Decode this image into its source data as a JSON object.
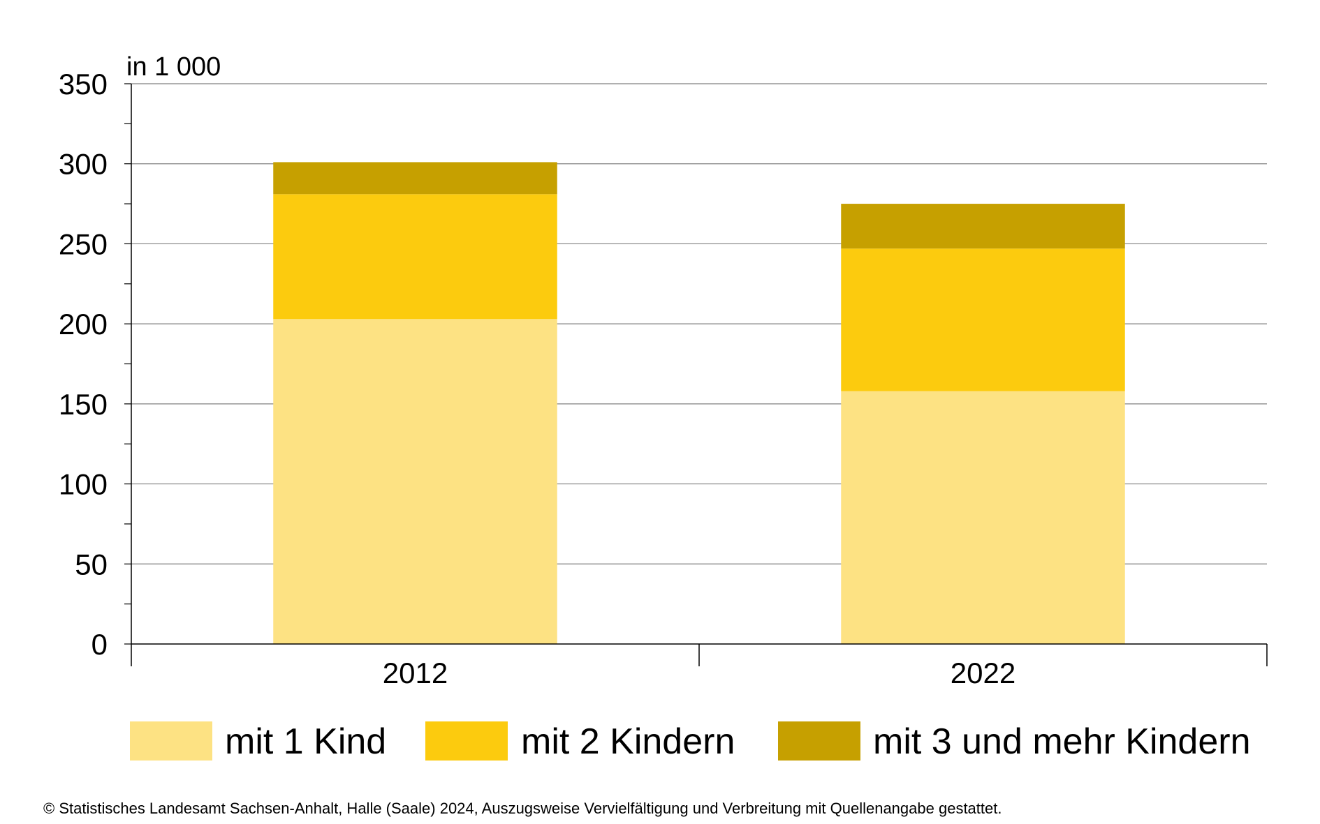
{
  "chart_data": {
    "type": "bar",
    "stacked": true,
    "unit_label": "in 1 000",
    "categories": [
      "2012",
      "2022"
    ],
    "series": [
      {
        "name": "mit 1 Kind",
        "values": [
          203,
          158
        ],
        "color": "#FDE283"
      },
      {
        "name": "mit 2 Kindern",
        "values": [
          78,
          89
        ],
        "color": "#FCCB0E"
      },
      {
        "name": "mit 3 und mehr Kindern",
        "values": [
          20,
          28
        ],
        "color": "#C6A000"
      }
    ],
    "ylim": [
      0,
      350
    ],
    "yticks": [
      0,
      50,
      100,
      150,
      200,
      250,
      300,
      350
    ],
    "grid": true,
    "legend_position": "bottom"
  },
  "footer": "© Statistisches Landesamt Sachsen-Anhalt, Halle (Saale) 2024, Auszugsweise Vervielfältigung und Verbreitung mit Quellenangabe gestattet."
}
